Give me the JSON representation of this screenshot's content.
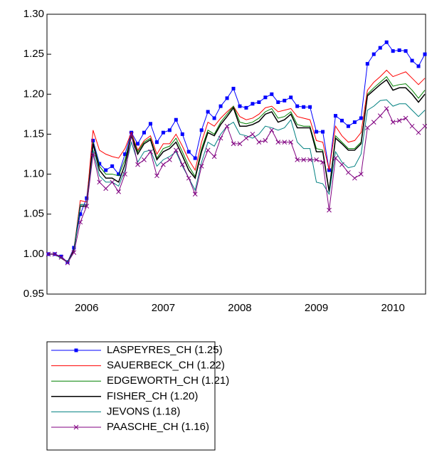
{
  "chart_data": {
    "type": "line",
    "categories": [
      null,
      null,
      null,
      null,
      null,
      null,
      "2006",
      null,
      null,
      null,
      null,
      null,
      null,
      null,
      null,
      null,
      null,
      null,
      "2007",
      null,
      null,
      null,
      null,
      null,
      null,
      null,
      null,
      null,
      null,
      null,
      "2008",
      null,
      null,
      null,
      null,
      null,
      null,
      null,
      null,
      null,
      null,
      null,
      "2009",
      null,
      null,
      null,
      null,
      null,
      null,
      null,
      null,
      null,
      null,
      null,
      "2010",
      null,
      null,
      null,
      null,
      null
    ],
    "ylim": [
      0.95,
      1.3
    ],
    "yticks": [
      0.95,
      {
        "value": 1,
        "label": "1.00"
      },
      1.05,
      {
        "value": 1.1,
        "label": "1.10"
      },
      1.15,
      {
        "value": 1.2,
        "label": "1.20"
      },
      1.25,
      {
        "value": 1.3,
        "label": "1.30"
      }
    ],
    "series": [
      {
        "name": "LASPEYRES_CH (1.25)",
        "color": "#0000ff",
        "marker": "square",
        "values": [
          1.0,
          1.0,
          0.997,
          0.99,
          1.008,
          1.05,
          1.07,
          1.142,
          1.113,
          1.105,
          1.11,
          1.1,
          1.125,
          1.152,
          1.138,
          1.152,
          1.163,
          1.14,
          1.152,
          1.155,
          1.168,
          1.15,
          1.128,
          1.12,
          1.155,
          1.178,
          1.17,
          1.185,
          1.195,
          1.207,
          1.185,
          1.183,
          1.188,
          1.19,
          1.196,
          1.2,
          1.19,
          1.192,
          1.196,
          1.185,
          1.184,
          1.184,
          1.153,
          1.153,
          1.105,
          1.173,
          1.167,
          1.16,
          1.165,
          1.17,
          1.238,
          1.25,
          1.258,
          1.265,
          1.254,
          1.255,
          1.254,
          1.242,
          1.235,
          1.25
        ]
      },
      {
        "name": "SAUERBECK_CH (1.22)",
        "color": "#ff0000",
        "values": [
          1.0,
          1.0,
          0.996,
          0.99,
          1.006,
          1.067,
          1.065,
          1.155,
          1.13,
          1.125,
          1.122,
          1.12,
          1.132,
          1.152,
          1.13,
          1.142,
          1.148,
          1.125,
          1.138,
          1.138,
          1.15,
          1.135,
          1.118,
          1.105,
          1.14,
          1.165,
          1.16,
          1.17,
          1.178,
          1.185,
          1.172,
          1.168,
          1.17,
          1.175,
          1.183,
          1.185,
          1.178,
          1.18,
          1.182,
          1.172,
          1.17,
          1.168,
          1.142,
          1.14,
          1.105,
          1.16,
          1.148,
          1.14,
          1.142,
          1.152,
          1.205,
          1.215,
          1.222,
          1.23,
          1.222,
          1.225,
          1.228,
          1.22,
          1.212,
          1.22
        ]
      },
      {
        "name": "EDGEWORTH_CH (1.21)",
        "color": "#008000",
        "values": [
          1.0,
          1.0,
          0.995,
          0.99,
          1.005,
          1.062,
          1.062,
          1.14,
          1.11,
          1.1,
          1.1,
          1.098,
          1.118,
          1.15,
          1.128,
          1.14,
          1.145,
          1.12,
          1.132,
          1.135,
          1.145,
          1.128,
          1.11,
          1.097,
          1.132,
          1.155,
          1.15,
          1.165,
          1.175,
          1.185,
          1.165,
          1.163,
          1.165,
          1.17,
          1.178,
          1.182,
          1.17,
          1.172,
          1.178,
          1.162,
          1.16,
          1.16,
          1.132,
          1.13,
          1.08,
          1.148,
          1.14,
          1.132,
          1.132,
          1.14,
          1.2,
          1.208,
          1.215,
          1.222,
          1.21,
          1.212,
          1.213,
          1.205,
          1.195,
          1.205
        ]
      },
      {
        "name": "FISHER_CH (1.20)",
        "color": "#000000",
        "values": [
          1.0,
          1.0,
          0.995,
          0.99,
          1.004,
          1.06,
          1.06,
          1.138,
          1.105,
          1.095,
          1.095,
          1.09,
          1.112,
          1.148,
          1.125,
          1.138,
          1.143,
          1.118,
          1.128,
          1.132,
          1.14,
          1.123,
          1.105,
          1.095,
          1.128,
          1.152,
          1.148,
          1.162,
          1.172,
          1.183,
          1.16,
          1.16,
          1.162,
          1.166,
          1.175,
          1.178,
          1.165,
          1.168,
          1.175,
          1.158,
          1.158,
          1.158,
          1.128,
          1.128,
          1.078,
          1.145,
          1.138,
          1.13,
          1.13,
          1.138,
          1.198,
          1.205,
          1.212,
          1.218,
          1.205,
          1.208,
          1.208,
          1.2,
          1.19,
          1.2
        ]
      },
      {
        "name": "JEVONS (1.18)",
        "color": "#008080",
        "values": [
          1.0,
          1.0,
          0.995,
          0.99,
          1.003,
          1.062,
          1.062,
          1.13,
          1.098,
          1.09,
          1.09,
          1.085,
          1.105,
          1.14,
          1.115,
          1.128,
          1.13,
          1.11,
          1.118,
          1.122,
          1.128,
          1.11,
          1.095,
          1.08,
          1.115,
          1.14,
          1.135,
          1.15,
          1.16,
          1.165,
          1.15,
          1.148,
          1.145,
          1.15,
          1.16,
          1.158,
          1.155,
          1.158,
          1.168,
          1.14,
          1.132,
          1.132,
          1.09,
          1.088,
          1.075,
          1.128,
          1.115,
          1.108,
          1.11,
          1.125,
          1.18,
          1.185,
          1.192,
          1.193,
          1.185,
          1.188,
          1.188,
          1.18,
          1.172,
          1.18
        ]
      },
      {
        "name": "PAASCHE_CH (1.16)",
        "color": "#800080",
        "marker": "x",
        "values": [
          1.0,
          1.0,
          0.996,
          0.989,
          1.002,
          1.04,
          1.06,
          1.125,
          1.09,
          1.082,
          1.09,
          1.078,
          1.1,
          1.15,
          1.112,
          1.118,
          1.128,
          1.098,
          1.112,
          1.118,
          1.13,
          1.112,
          1.095,
          1.075,
          1.11,
          1.13,
          1.122,
          1.145,
          1.16,
          1.138,
          1.138,
          1.145,
          1.15,
          1.14,
          1.142,
          1.155,
          1.14,
          1.14,
          1.14,
          1.118,
          1.118,
          1.118,
          1.118,
          1.115,
          1.055,
          1.12,
          1.112,
          1.102,
          1.095,
          1.1,
          1.158,
          1.165,
          1.173,
          1.182,
          1.165,
          1.167,
          1.17,
          1.16,
          1.152,
          1.16
        ]
      }
    ]
  }
}
